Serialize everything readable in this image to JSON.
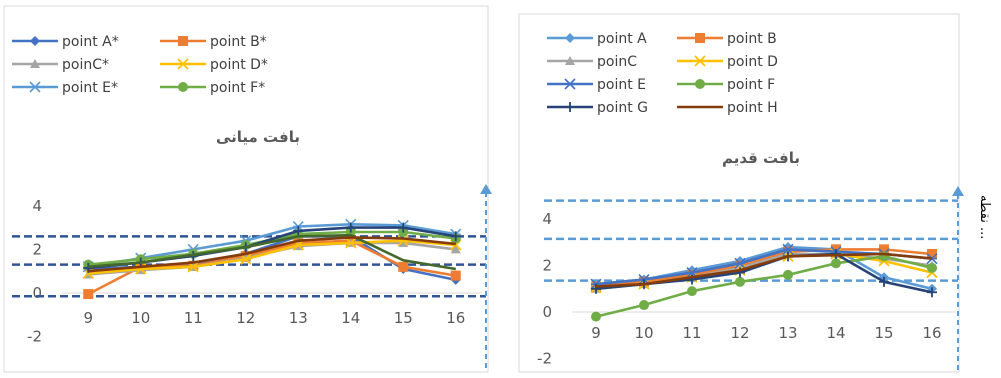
{
  "chart_data": [
    {
      "type": "line",
      "title": "بافت میانی",
      "categories": [
        "9",
        "10",
        "11",
        "12",
        "13",
        "14",
        "15",
        "16"
      ],
      "ylim": [
        -2,
        4
      ],
      "yticks": [
        "-2",
        "0",
        "2",
        "4"
      ],
      "grid": false,
      "legend_position": "top-left",
      "reference_lines": [
        2.6,
        1.3,
        -0.15
      ],
      "series": [
        {
          "name": "point A*",
          "color": "#4472C4",
          "marker": "diamond",
          "values": [
            1.1,
            1.2,
            1.3,
            1.8,
            2.6,
            2.6,
            1.1,
            0.6
          ]
        },
        {
          "name": "point B*",
          "color": "#ED7D31",
          "marker": "square",
          "values": [
            -0.05,
            1.2,
            1.25,
            1.7,
            2.3,
            2.4,
            1.2,
            0.8
          ]
        },
        {
          "name": "poinC*",
          "color": "#A5A5A5",
          "marker": "triangle",
          "values": [
            0.85,
            1.05,
            1.2,
            1.6,
            2.15,
            2.3,
            2.3,
            2.0
          ]
        },
        {
          "name": "point D*",
          "color": "#FFC000",
          "marker": "x",
          "values": [
            0.9,
            1.1,
            1.2,
            1.55,
            2.2,
            2.3,
            2.4,
            2.2
          ]
        },
        {
          "name": "point E*",
          "color": "#5B9BD5",
          "marker": "star",
          "values": [
            1.2,
            1.6,
            2.0,
            2.4,
            3.05,
            3.15,
            3.1,
            2.7
          ]
        },
        {
          "name": "point F*",
          "color": "#70AD47",
          "marker": "circle",
          "values": [
            1.3,
            1.55,
            1.8,
            2.2,
            2.7,
            2.8,
            2.8,
            2.5
          ]
        },
        {
          "name": "",
          "color": "#264478",
          "marker": "plus",
          "values": [
            1.15,
            1.4,
            1.7,
            2.1,
            2.85,
            3.0,
            3.0,
            2.6
          ]
        },
        {
          "name": "",
          "color": "#43682B",
          "marker": "none",
          "values": [
            1.2,
            1.4,
            1.75,
            2.1,
            2.6,
            2.65,
            1.5,
            1.1
          ]
        },
        {
          "name": "",
          "color": "#843C0C",
          "marker": "none",
          "values": [
            1.0,
            1.2,
            1.4,
            1.8,
            2.4,
            2.55,
            2.5,
            2.25
          ]
        }
      ]
    },
    {
      "type": "line",
      "title": "بافت قدیم",
      "categories": [
        "9",
        "10",
        "11",
        "12",
        "13",
        "14",
        "15",
        "16"
      ],
      "ylim": [
        -2,
        4
      ],
      "yticks": [
        "-2",
        "0",
        "2",
        "4"
      ],
      "grid": false,
      "legend_position": "top-left",
      "reference_lines": [
        4.8,
        3.15,
        1.35
      ],
      "series": [
        {
          "name": "point A",
          "color": "#5B9BD5",
          "marker": "diamond",
          "values": [
            1.2,
            1.4,
            1.8,
            2.2,
            2.8,
            2.7,
            1.5,
            1.0
          ]
        },
        {
          "name": "point B",
          "color": "#ED7D31",
          "marker": "square",
          "values": [
            1.1,
            1.3,
            1.6,
            2.0,
            2.6,
            2.7,
            2.7,
            2.5
          ]
        },
        {
          "name": "poinC",
          "color": "#A5A5A5",
          "marker": "triangle",
          "values": [
            1.0,
            1.2,
            1.5,
            1.9,
            2.5,
            2.5,
            2.3,
            2.0
          ]
        },
        {
          "name": "point D",
          "color": "#FFC000",
          "marker": "x",
          "values": [
            1.05,
            1.2,
            1.5,
            1.8,
            2.4,
            2.5,
            2.2,
            1.7
          ]
        },
        {
          "name": "point E",
          "color": "#4472C4",
          "marker": "star",
          "values": [
            1.2,
            1.4,
            1.7,
            2.1,
            2.7,
            2.6,
            2.5,
            2.3
          ]
        },
        {
          "name": "point F",
          "color": "#70AD47",
          "marker": "circle",
          "values": [
            -0.2,
            0.3,
            0.9,
            1.3,
            1.6,
            2.1,
            2.4,
            1.9
          ]
        },
        {
          "name": "point G",
          "color": "#264478",
          "marker": "plus",
          "values": [
            1.0,
            1.2,
            1.4,
            1.7,
            2.4,
            2.5,
            1.3,
            0.85
          ]
        },
        {
          "name": "point H",
          "color": "#843C0C",
          "marker": "none",
          "values": [
            1.1,
            1.2,
            1.5,
            1.8,
            2.4,
            2.45,
            2.5,
            2.3
          ]
        }
      ]
    }
  ],
  "side_label": "نقطه ..."
}
